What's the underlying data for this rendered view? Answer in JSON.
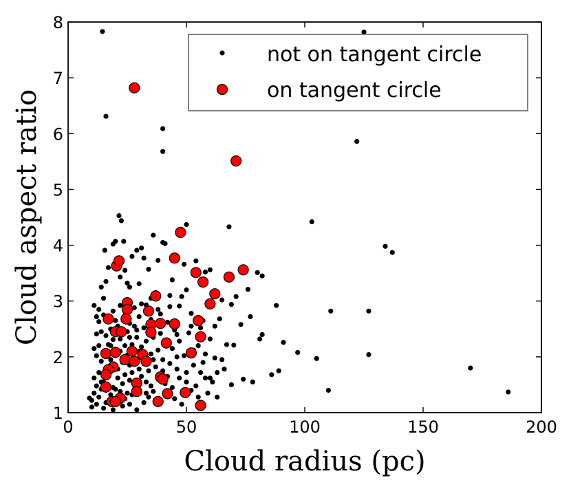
{
  "chart_data": {
    "type": "scatter",
    "xlabel": "Cloud radius (pc)",
    "ylabel": "Cloud aspect ratio",
    "xlim": [
      0,
      200
    ],
    "ylim": [
      1,
      8
    ],
    "xticks": [
      "0",
      "50",
      "100",
      "150",
      "200"
    ],
    "yticks": [
      "1",
      "2",
      "3",
      "4",
      "5",
      "6",
      "7",
      "8"
    ],
    "grid": false,
    "legend_position": "top-right",
    "series": [
      {
        "name": "not on tangent circle",
        "color": "#000000",
        "marker": "small-dot",
        "points": [
          [
            14.5,
            7.83
          ],
          [
            125,
            7.82
          ],
          [
            16,
            6.31
          ],
          [
            40,
            6.09
          ],
          [
            40,
            5.68
          ],
          [
            122,
            5.86
          ],
          [
            21.5,
            4.53
          ],
          [
            22.5,
            4.44
          ],
          [
            103,
            4.42
          ],
          [
            50,
            4.37
          ],
          [
            68,
            4.33
          ],
          [
            134,
            3.98
          ],
          [
            137,
            3.87
          ],
          [
            36,
            4.18
          ],
          [
            41,
            4.03
          ],
          [
            20,
            4.07
          ],
          [
            23.5,
            4.07
          ],
          [
            19,
            4.02
          ],
          [
            29,
            3.91
          ],
          [
            31,
            3.95
          ],
          [
            40,
            4.05
          ],
          [
            38,
            3.73
          ],
          [
            49,
            3.66
          ],
          [
            54,
            3.72
          ],
          [
            60,
            3.56
          ],
          [
            58,
            3.52
          ],
          [
            15.5,
            3.91
          ],
          [
            32,
            3.77
          ],
          [
            27,
            3.8
          ],
          [
            17,
            3.6
          ],
          [
            24,
            3.55
          ],
          [
            34,
            3.57
          ],
          [
            22,
            3.43
          ],
          [
            14,
            3.25
          ],
          [
            16,
            3.35
          ],
          [
            30,
            3.31
          ],
          [
            25,
            3.32
          ],
          [
            26,
            3.25
          ],
          [
            37,
            3.15
          ],
          [
            43,
            3.1
          ],
          [
            44,
            3.38
          ],
          [
            80,
            3.51
          ],
          [
            82,
            3.45
          ],
          [
            76,
            3.21
          ],
          [
            71,
            3.08
          ],
          [
            65,
            3.02
          ],
          [
            69,
            2.94
          ],
          [
            48,
            3.08
          ],
          [
            50,
            3.2
          ],
          [
            47,
            2.91
          ],
          [
            52,
            2.78
          ],
          [
            11,
            2.92
          ],
          [
            12,
            2.72
          ],
          [
            13,
            2.63
          ],
          [
            15,
            2.75
          ],
          [
            18,
            2.65
          ],
          [
            21,
            2.55
          ],
          [
            19,
            2.82
          ],
          [
            22,
            2.92
          ],
          [
            28,
            2.88
          ],
          [
            30,
            2.72
          ],
          [
            33,
            2.93
          ],
          [
            35,
            2.67
          ],
          [
            39,
            2.77
          ],
          [
            42,
            2.62
          ],
          [
            45,
            2.48
          ],
          [
            56,
            2.52
          ],
          [
            62,
            2.55
          ],
          [
            64,
            2.68
          ],
          [
            73,
            2.58
          ],
          [
            77,
            2.72
          ],
          [
            88,
            2.92
          ],
          [
            111,
            2.82
          ],
          [
            127,
            2.82
          ],
          [
            12,
            2.41
          ],
          [
            14,
            2.45
          ],
          [
            16,
            2.38
          ],
          [
            17,
            2.22
          ],
          [
            19,
            2.31
          ],
          [
            22,
            2.32
          ],
          [
            25,
            2.45
          ],
          [
            27,
            2.22
          ],
          [
            29,
            2.35
          ],
          [
            31,
            2.18
          ],
          [
            33,
            2.28
          ],
          [
            36,
            2.35
          ],
          [
            39,
            2.42
          ],
          [
            44,
            2.15
          ],
          [
            47,
            2.28
          ],
          [
            51,
            2.43
          ],
          [
            55,
            2.2
          ],
          [
            58,
            2.05
          ],
          [
            60,
            2.32
          ],
          [
            67,
            2.22
          ],
          [
            70,
            2.21
          ],
          [
            81,
            2.32
          ],
          [
            82,
            2.4
          ],
          [
            91,
            2.26
          ],
          [
            11,
            2.15
          ],
          [
            12,
            2.02
          ],
          [
            14,
            1.92
          ],
          [
            16,
            2.05
          ],
          [
            18,
            1.95
          ],
          [
            20,
            1.85
          ],
          [
            21,
            1.78
          ],
          [
            23,
            1.9
          ],
          [
            25,
            2.03
          ],
          [
            26,
            1.85
          ],
          [
            28,
            1.95
          ],
          [
            30,
            1.78
          ],
          [
            32,
            1.88
          ],
          [
            34,
            1.75
          ],
          [
            37,
            1.82
          ],
          [
            40,
            1.95
          ],
          [
            43,
            1.88
          ],
          [
            46,
            1.78
          ],
          [
            49,
            2.02
          ],
          [
            53,
            1.85
          ],
          [
            57,
            1.9
          ],
          [
            62,
            1.98
          ],
          [
            65,
            1.95
          ],
          [
            97,
            2.08
          ],
          [
            105,
            1.97
          ],
          [
            127,
            2.04
          ],
          [
            11,
            1.62
          ],
          [
            12,
            1.48
          ],
          [
            13,
            1.72
          ],
          [
            15,
            1.55
          ],
          [
            17,
            1.65
          ],
          [
            19,
            1.45
          ],
          [
            21,
            1.62
          ],
          [
            23,
            1.52
          ],
          [
            24,
            1.68
          ],
          [
            26,
            1.58
          ],
          [
            28,
            1.42
          ],
          [
            31,
            1.65
          ],
          [
            33,
            1.55
          ],
          [
            35,
            1.48
          ],
          [
            38,
            1.6
          ],
          [
            41,
            1.52
          ],
          [
            44,
            1.45
          ],
          [
            47,
            1.62
          ],
          [
            50,
            1.55
          ],
          [
            54,
            1.48
          ],
          [
            58,
            1.62
          ],
          [
            61,
            1.55
          ],
          [
            63,
            1.72
          ],
          [
            66,
            1.78
          ],
          [
            69,
            1.5
          ],
          [
            74,
            1.6
          ],
          [
            78,
            1.55
          ],
          [
            86,
            1.68
          ],
          [
            89,
            1.75
          ],
          [
            10,
            1.22
          ],
          [
            11,
            1.35
          ],
          [
            12,
            1.15
          ],
          [
            13,
            1.28
          ],
          [
            14,
            1.42
          ],
          [
            16,
            1.18
          ],
          [
            18,
            1.32
          ],
          [
            20,
            1.22
          ],
          [
            22,
            1.38
          ],
          [
            24,
            1.25
          ],
          [
            26,
            1.15
          ],
          [
            27,
            1.32
          ],
          [
            29,
            1.05
          ],
          [
            32,
            1.18
          ],
          [
            34,
            1.28
          ],
          [
            36,
            1.38
          ],
          [
            39,
            1.2
          ],
          [
            42,
            1.32
          ],
          [
            45,
            1.25
          ],
          [
            48,
            1.15
          ],
          [
            52,
            1.4
          ],
          [
            55,
            1.28
          ],
          [
            59,
            1.35
          ],
          [
            63,
            1.28
          ],
          [
            110,
            1.4
          ],
          [
            170,
            1.8
          ],
          [
            186,
            1.37
          ],
          [
            9,
            1.26
          ],
          [
            10,
            1.1
          ],
          [
            15,
            1.08
          ],
          [
            19,
            1.05
          ],
          [
            23,
            1.12
          ],
          [
            13,
            2.85
          ],
          [
            15,
            3.05
          ],
          [
            18,
            2.5
          ],
          [
            20,
            2.65
          ],
          [
            24,
            2.75
          ],
          [
            26,
            2.6
          ],
          [
            29,
            2.48
          ],
          [
            32,
            2.52
          ],
          [
            35,
            2.05
          ],
          [
            38,
            2.12
          ],
          [
            41,
            2.3
          ],
          [
            44,
            2.62
          ],
          [
            13,
            2.2
          ],
          [
            17,
            1.82
          ],
          [
            20,
            1.42
          ],
          [
            22,
            2.1
          ],
          [
            25,
            1.35
          ],
          [
            27,
            1.72
          ],
          [
            30,
            2.1
          ],
          [
            33,
            1.35
          ],
          [
            36,
            1.95
          ],
          [
            40,
            1.75
          ],
          [
            42,
            1.65
          ],
          [
            46,
            2.0
          ],
          [
            50,
            1.72
          ],
          [
            53,
            2.12
          ],
          [
            56,
            1.72
          ],
          [
            60,
            1.62
          ],
          [
            14,
            1.55
          ],
          [
            16,
            1.4
          ],
          [
            18,
            2.2
          ],
          [
            21,
            2.05
          ],
          [
            24,
            2.2
          ],
          [
            26,
            2.35
          ],
          [
            28,
            2.55
          ],
          [
            31,
            2.95
          ],
          [
            35,
            3.05
          ],
          [
            38,
            2.85
          ],
          [
            43,
            2.9
          ],
          [
            46,
            2.4
          ],
          [
            52,
            2.55
          ],
          [
            57,
            2.65
          ]
        ]
      },
      {
        "name": "on tangent circle",
        "color": "#ff0000",
        "marker": "large-circle",
        "points": [
          [
            28,
            6.82
          ],
          [
            71,
            5.51
          ],
          [
            47.5,
            4.23
          ],
          [
            45,
            3.77
          ],
          [
            20.5,
            3.63
          ],
          [
            21.5,
            3.72
          ],
          [
            54,
            3.51
          ],
          [
            74,
            3.56
          ],
          [
            68,
            3.43
          ],
          [
            57,
            3.34
          ],
          [
            62,
            3.13
          ],
          [
            37,
            3.09
          ],
          [
            60,
            2.95
          ],
          [
            25,
            2.97
          ],
          [
            25,
            2.85
          ],
          [
            34,
            2.82
          ],
          [
            17,
            2.68
          ],
          [
            24.5,
            2.68
          ],
          [
            55,
            2.65
          ],
          [
            35,
            2.58
          ],
          [
            39,
            2.6
          ],
          [
            45,
            2.59
          ],
          [
            20,
            2.45
          ],
          [
            22.5,
            2.45
          ],
          [
            35,
            2.44
          ],
          [
            56,
            2.36
          ],
          [
            41.5,
            2.25
          ],
          [
            16,
            2.06
          ],
          [
            20,
            2.08
          ],
          [
            27,
            2.1
          ],
          [
            31.5,
            2.04
          ],
          [
            52,
            2.07
          ],
          [
            24,
            1.95
          ],
          [
            19,
            1.82
          ],
          [
            17,
            1.77
          ],
          [
            28,
            1.92
          ],
          [
            33,
            1.92
          ],
          [
            16,
            1.68
          ],
          [
            39,
            1.64
          ],
          [
            40,
            1.6
          ],
          [
            16,
            1.46
          ],
          [
            29,
            1.53
          ],
          [
            29,
            1.38
          ],
          [
            42,
            1.34
          ],
          [
            49.5,
            1.36
          ],
          [
            22,
            1.26
          ],
          [
            18.5,
            1.2
          ],
          [
            20,
            1.2
          ],
          [
            38,
            1.2
          ],
          [
            56,
            1.13
          ]
        ]
      }
    ]
  }
}
